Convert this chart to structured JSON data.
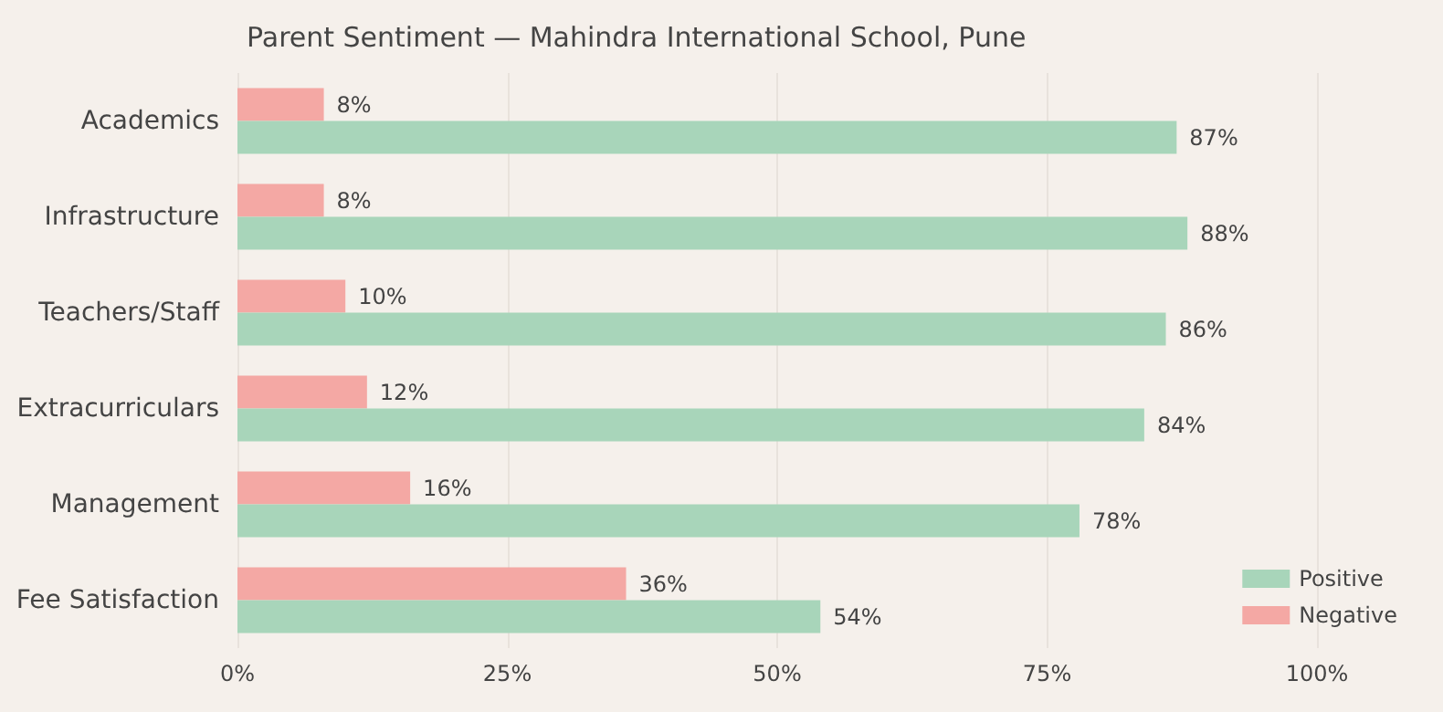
{
  "chart_data": {
    "type": "bar",
    "orientation": "horizontal",
    "title": "Parent Sentiment — Mahindra International School, Pune",
    "categories": [
      "Academics",
      "Infrastructure",
      "Teachers/Staff",
      "Extracurriculars",
      "Management",
      "Fee Satisfaction"
    ],
    "series": [
      {
        "name": "Positive",
        "color": "#a8d5ba",
        "values": [
          87,
          88,
          86,
          84,
          78,
          54
        ],
        "value_labels": [
          "87%",
          "88%",
          "86%",
          "84%",
          "78%",
          "54%"
        ]
      },
      {
        "name": "Negative",
        "color": "#f4a8a4",
        "values": [
          8,
          8,
          10,
          12,
          16,
          36
        ],
        "value_labels": [
          "8%",
          "8%",
          "10%",
          "12%",
          "16%",
          "36%"
        ]
      }
    ],
    "xlim": [
      0,
      100
    ],
    "xticks": [
      {
        "value": 0,
        "label": "0%"
      },
      {
        "value": 25,
        "label": "25%"
      },
      {
        "value": 50,
        "label": "50%"
      },
      {
        "value": 75,
        "label": "75%"
      },
      {
        "value": 100,
        "label": "100%"
      }
    ],
    "grid": "x",
    "legend": "bottom right"
  }
}
